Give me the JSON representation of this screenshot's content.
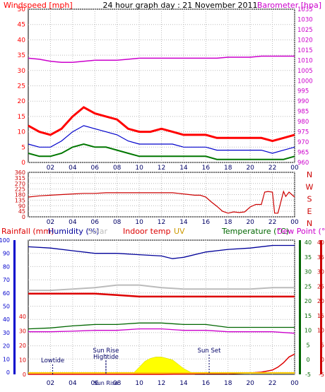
{
  "header": {
    "title": "24 hour graph day : 21 November 2011",
    "left_label": "Windspeed [mph]",
    "right_label": "Barometer [hpa]"
  },
  "colors": {
    "wind": "#ff0000",
    "wind_avg": "#0000cc",
    "wind_low": "#007700",
    "baro": "#cc00cc",
    "dir": "#cc0000",
    "humidity": "#000099",
    "solar": "#bbbbbb",
    "indoor": "#dd0000",
    "uv": "#cc9900",
    "temperature": "#006600",
    "dewpoint": "#cc00cc",
    "rain": "#dd0000",
    "sun": "#ffff00",
    "tide": "#000066",
    "axis_left": "#0000cc",
    "axis_right_temp": "#006600",
    "axis_right_dew": "#cc0000",
    "grid": "#bbbbbb"
  },
  "chart_data": [
    {
      "type": "line",
      "id": "wind-baro",
      "x_ticks": [
        "02",
        "04",
        "06",
        "08",
        "10",
        "12",
        "14",
        "16",
        "18",
        "20",
        "22",
        "00"
      ],
      "y_left": {
        "label": "Windspeed [mph]",
        "range": [
          0,
          50
        ],
        "ticks": [
          "0",
          "5",
          "10",
          "15",
          "20",
          "25",
          "30",
          "35",
          "40",
          "45",
          "50"
        ]
      },
      "y_right": {
        "label": "Barometer [hpa]",
        "range": [
          960,
          1035
        ],
        "ticks": [
          "960",
          "965",
          "970",
          "975",
          "980",
          "985",
          "990",
          "995",
          "1000",
          "1005",
          "1010",
          "1015",
          "1020",
          "1025",
          "1030",
          "1035"
        ]
      },
      "series": [
        {
          "key": "gust",
          "axis": "left",
          "x": [
            0,
            1,
            2,
            3,
            4,
            5,
            6,
            7,
            8,
            9,
            10,
            11,
            12,
            13,
            14,
            15,
            16,
            17,
            18,
            19,
            20,
            21,
            22,
            23,
            24
          ],
          "values": [
            12,
            10,
            9,
            11,
            15,
            18,
            16,
            15,
            14,
            11,
            10,
            10,
            11,
            10,
            9,
            9,
            9,
            8,
            8,
            8,
            8,
            8,
            7,
            8,
            9
          ]
        },
        {
          "key": "avg",
          "axis": "left",
          "x": [
            0,
            1,
            2,
            3,
            4,
            5,
            6,
            7,
            8,
            9,
            10,
            11,
            12,
            13,
            14,
            15,
            16,
            17,
            18,
            19,
            20,
            21,
            22,
            23,
            24
          ],
          "values": [
            6,
            5,
            5,
            7,
            10,
            12,
            11,
            10,
            9,
            7,
            6,
            6,
            6,
            6,
            5,
            5,
            5,
            4,
            4,
            4,
            4,
            4,
            3,
            4,
            5
          ]
        },
        {
          "key": "low",
          "axis": "left",
          "x": [
            0,
            1,
            2,
            3,
            4,
            5,
            6,
            7,
            8,
            9,
            10,
            11,
            12,
            13,
            14,
            15,
            16,
            17,
            18,
            19,
            20,
            21,
            22,
            23,
            24
          ],
          "values": [
            3,
            2,
            2,
            3,
            5,
            6,
            5,
            5,
            4,
            3,
            2,
            2,
            2,
            2,
            2,
            2,
            2,
            1,
            1,
            1,
            1,
            1,
            1,
            1,
            2
          ]
        },
        {
          "key": "baro",
          "axis": "right",
          "x": [
            0,
            1,
            2,
            3,
            4,
            5,
            6,
            7,
            8,
            9,
            10,
            11,
            12,
            13,
            14,
            15,
            16,
            17,
            18,
            19,
            20,
            21,
            22,
            23,
            24
          ],
          "values": [
            1011,
            1010.5,
            1009.5,
            1009,
            1009,
            1009.5,
            1010,
            1010,
            1010,
            1010.5,
            1011,
            1011,
            1011,
            1011,
            1011,
            1011,
            1011,
            1011,
            1011.5,
            1011.5,
            1011.5,
            1012,
            1012,
            1012,
            1012
          ]
        }
      ]
    },
    {
      "type": "line",
      "id": "direction",
      "x_ticks": [
        "02",
        "04",
        "06",
        "08",
        "10",
        "12",
        "14",
        "16",
        "18",
        "20",
        "22",
        "00"
      ],
      "y_left": {
        "range": [
          0,
          360
        ],
        "ticks": [
          "0",
          "45",
          "90",
          "135",
          "180",
          "225",
          "270",
          "315",
          "360"
        ]
      },
      "y_right": {
        "ticks": [
          "N",
          "W",
          "S",
          "E",
          "N"
        ]
      },
      "series": [
        {
          "key": "dir",
          "x": [
            0,
            1,
            2,
            3,
            4,
            5,
            6,
            7,
            8,
            9,
            10,
            11,
            12,
            13,
            14,
            15,
            15.5,
            16,
            16.5,
            17,
            17.5,
            18,
            18.5,
            19,
            19.5,
            20,
            20.5,
            21,
            21.3,
            21.6,
            22,
            22.2,
            22.5,
            23,
            23.2,
            23.5,
            24
          ],
          "values": [
            160,
            170,
            175,
            180,
            185,
            190,
            190,
            195,
            195,
            195,
            195,
            195,
            195,
            195,
            185,
            175,
            175,
            160,
            120,
            85,
            45,
            30,
            40,
            35,
            40,
            80,
            100,
            100,
            200,
            205,
            200,
            30,
            30,
            205,
            165,
            200,
            160
          ]
        }
      ]
    },
    {
      "type": "line",
      "id": "combined",
      "legend": [
        "Rainfall (mm)",
        "Humidity (%)",
        "Solar",
        "Indoor temp",
        "UV",
        "Temperature (°C)",
        "Dew Point (°C)"
      ],
      "x_ticks": [
        "02",
        "04",
        "06",
        "08",
        "10",
        "12",
        "14",
        "16",
        "18",
        "20",
        "22",
        "00"
      ],
      "y_left_rain": {
        "range": [
          0,
          40
        ],
        "ticks": [
          "0",
          "10",
          "20",
          "30",
          "40"
        ]
      },
      "y_left_hum": {
        "range": [
          0,
          100
        ],
        "ticks": [
          "0",
          "10",
          "20",
          "30",
          "40",
          "50",
          "60",
          "70",
          "80",
          "90",
          "100"
        ]
      },
      "y_right_temp": {
        "range": [
          -5,
          40
        ],
        "ticks": [
          "-5",
          "0",
          "5",
          "10",
          "15",
          "20",
          "25",
          "30",
          "35",
          "40"
        ]
      },
      "annotations": [
        {
          "label": "Lowtide",
          "x": 2.2
        },
        {
          "label": "Sun Rise",
          "x": 7.0
        },
        {
          "label": "Hightide",
          "x": 7.0
        },
        {
          "label": "Sun Set",
          "x": 16.3
        }
      ],
      "x_subtick_labels": [
        "Sun Rise"
      ],
      "series": [
        {
          "key": "humidity",
          "axis": "hum",
          "x": [
            0,
            2,
            4,
            6,
            8,
            10,
            12,
            13,
            14,
            16,
            18,
            20,
            22,
            24
          ],
          "values": [
            95,
            94,
            92,
            90,
            90,
            89,
            88,
            86,
            87,
            91,
            93,
            94,
            96,
            96
          ]
        },
        {
          "key": "solar",
          "axis": "hum",
          "x": [
            0,
            2,
            4,
            6,
            8,
            10,
            12,
            14,
            16,
            18,
            20,
            22,
            24
          ],
          "values": [
            62,
            62,
            63,
            64,
            66,
            66,
            64,
            63,
            63,
            63,
            63,
            64,
            64
          ]
        },
        {
          "key": "indoor",
          "axis": "temp",
          "x": [
            0,
            2,
            4,
            6,
            8,
            10,
            12,
            14,
            16,
            18,
            20,
            22,
            24
          ],
          "values": [
            22.5,
            22.5,
            22.5,
            22.5,
            22,
            21.5,
            21.5,
            21.5,
            21.5,
            21.5,
            21.5,
            21.5,
            21.5
          ]
        },
        {
          "key": "temperature",
          "axis": "temp",
          "x": [
            0,
            2,
            4,
            6,
            8,
            10,
            12,
            14,
            16,
            18,
            20,
            22,
            24
          ],
          "values": [
            10.5,
            10.8,
            11.5,
            12,
            12,
            12.5,
            12.5,
            12,
            12,
            11,
            11,
            11,
            11
          ]
        },
        {
          "key": "dewpoint",
          "axis": "temp",
          "x": [
            0,
            2,
            4,
            6,
            8,
            10,
            12,
            14,
            16,
            18,
            20,
            22,
            24
          ],
          "values": [
            9.5,
            9.5,
            9.7,
            10,
            10,
            10.5,
            10.5,
            10,
            10,
            9.5,
            9.5,
            9.5,
            9
          ]
        },
        {
          "key": "rain",
          "axis": "rain",
          "x": [
            0,
            12,
            16,
            18,
            20,
            21,
            22,
            22.5,
            23,
            23.5,
            24
          ],
          "values": [
            0,
            0,
            0.5,
            0.5,
            1,
            1.5,
            3,
            5,
            8,
            12,
            14
          ]
        },
        {
          "key": "sun",
          "axis": "rain",
          "x": [
            9.5,
            10,
            10.5,
            11,
            11.5,
            12,
            12.5,
            13,
            13.5,
            14,
            14.5,
            15
          ],
          "values": [
            1,
            5,
            9,
            11,
            12,
            12,
            11,
            10,
            7,
            4,
            2,
            0
          ]
        }
      ]
    }
  ]
}
